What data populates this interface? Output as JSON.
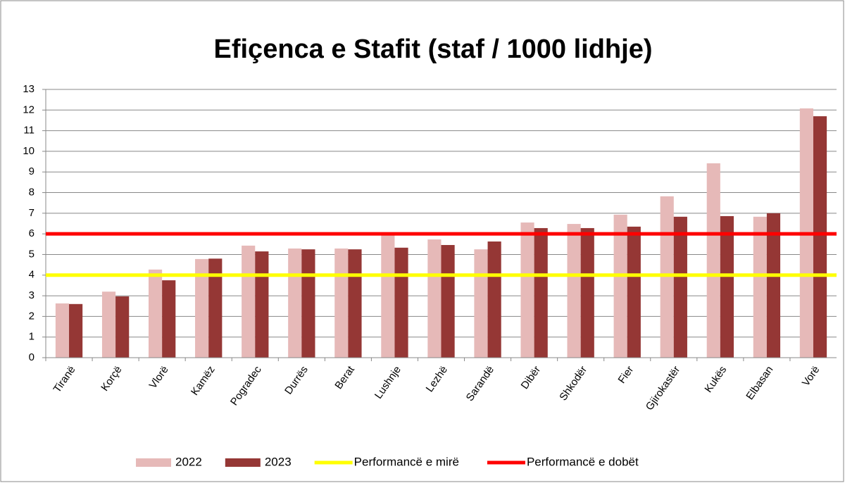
{
  "chart_data": {
    "type": "bar",
    "title": "Efiçenca e Stafit (staf / 1000 lidhje)",
    "categories": [
      "Tiranë",
      "Korçë",
      "Vlorë",
      "Kamëz",
      "Pogradec",
      "Durrës",
      "Berat",
      "Lushnje",
      "Lezhë",
      "Sarandë",
      "Dibër",
      "Shkodër",
      "Fier",
      "Gjirokastër",
      "Kukës",
      "Elbasan",
      "Vorë"
    ],
    "series": [
      {
        "name": "2022",
        "color": "#e6b9b8",
        "values": [
          2.63,
          3.2,
          4.27,
          4.78,
          5.43,
          5.29,
          5.29,
          6.0,
          5.73,
          5.25,
          6.55,
          6.48,
          6.93,
          7.82,
          9.42,
          6.83,
          12.08
        ]
      },
      {
        "name": "2023",
        "color": "#953735",
        "values": [
          2.6,
          2.97,
          3.75,
          4.8,
          5.15,
          5.25,
          5.25,
          5.33,
          5.46,
          5.63,
          6.28,
          6.28,
          6.35,
          6.83,
          6.86,
          7.0,
          11.7
        ]
      }
    ],
    "reference_lines": [
      {
        "name": "Performancë e mirë",
        "color": "#ffff00",
        "value": 4
      },
      {
        "name": "Performancë e dobët",
        "color": "#ff0000",
        "value": 6
      }
    ],
    "ylim": [
      0,
      13
    ],
    "yticks": [
      0,
      1,
      2,
      3,
      4,
      5,
      6,
      7,
      8,
      9,
      10,
      11,
      12,
      13
    ],
    "grid": true
  }
}
